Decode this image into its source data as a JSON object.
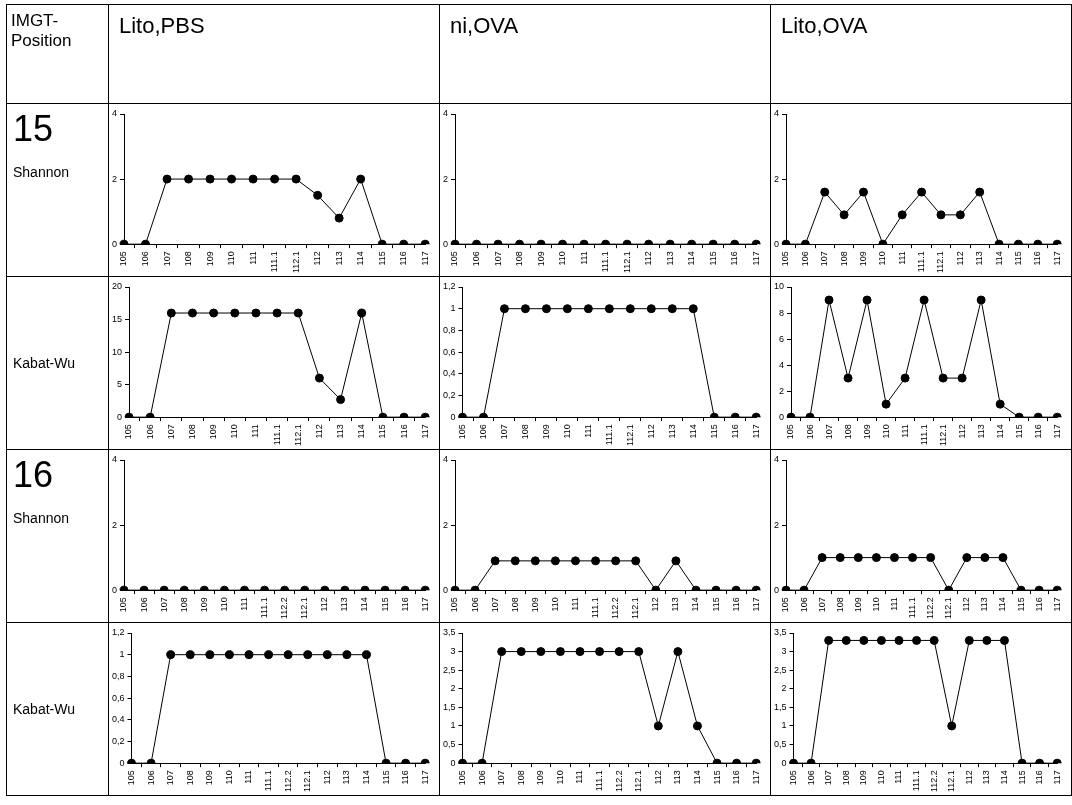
{
  "chart_data": [
    {
      "type": "other",
      "annotations": [
        "IMGT-Position",
        "Lito,PBS",
        "ni,OVA",
        "Lito,OVA",
        "15",
        "Shannon",
        "Kabat-Wu",
        "16",
        "Shannon",
        "Kabat-Wu"
      ]
    },
    {
      "type": "line",
      "marker": "circle",
      "line_style": "solid",
      "categories": [
        "105",
        "106",
        "107",
        "108",
        "109",
        "110",
        "111",
        "111.1",
        "112.1",
        "112",
        "113",
        "114",
        "115",
        "116",
        "117"
      ],
      "series": [
        {
          "color": "#000000",
          "values": [
            0,
            0,
            2,
            2,
            2,
            2,
            2,
            2,
            2,
            1.5,
            0.8,
            2,
            0,
            0,
            0
          ]
        }
      ],
      "ylim": [
        0,
        4
      ],
      "yticks": [
        0,
        2,
        4
      ]
    },
    {
      "type": "line",
      "marker": "circle",
      "line_style": "solid",
      "categories": [
        "105",
        "106",
        "107",
        "108",
        "109",
        "110",
        "111",
        "111.1",
        "112.1",
        "112",
        "113",
        "114",
        "115",
        "116",
        "117"
      ],
      "series": [
        {
          "color": "#000000",
          "values": [
            0,
            0,
            0,
            0,
            0,
            0,
            0,
            0,
            0,
            0,
            0,
            0,
            0,
            0,
            0
          ]
        }
      ],
      "ylim": [
        0,
        4
      ],
      "yticks": [
        0,
        2,
        4
      ]
    },
    {
      "type": "line",
      "marker": "circle",
      "line_style": "solid",
      "categories": [
        "105",
        "106",
        "107",
        "108",
        "109",
        "110",
        "111",
        "111.1",
        "112.1",
        "112",
        "113",
        "114",
        "115",
        "116",
        "117"
      ],
      "series": [
        {
          "color": "#000000",
          "values": [
            0,
            0,
            1.6,
            0.9,
            1.6,
            0,
            0.9,
            1.6,
            0.9,
            0.9,
            1.6,
            0,
            0,
            0,
            0
          ]
        }
      ],
      "ylim": [
        0,
        4
      ],
      "yticks": [
        0,
        2,
        4
      ]
    },
    {
      "type": "line",
      "marker": "circle",
      "line_style": "solid",
      "categories": [
        "105",
        "106",
        "107",
        "108",
        "109",
        "110",
        "111",
        "111.1",
        "112.1",
        "112",
        "113",
        "114",
        "115",
        "116",
        "117"
      ],
      "series": [
        {
          "color": "#000000",
          "values": [
            0,
            0,
            16,
            16,
            16,
            16,
            16,
            16,
            16,
            6,
            2.7,
            16,
            0,
            0,
            0
          ]
        }
      ],
      "ylim": [
        0,
        20
      ],
      "yticks": [
        0,
        5,
        10,
        15,
        20
      ]
    },
    {
      "type": "line",
      "marker": "circle",
      "line_style": "solid",
      "categories": [
        "105",
        "106",
        "107",
        "108",
        "109",
        "110",
        "111",
        "111.1",
        "112.1",
        "112",
        "113",
        "114",
        "115",
        "116",
        "117"
      ],
      "series": [
        {
          "color": "#000000",
          "values": [
            0,
            0,
            1,
            1,
            1,
            1,
            1,
            1,
            1,
            1,
            1,
            1,
            0,
            0,
            0
          ]
        }
      ],
      "ylim": [
        0,
        1.2
      ],
      "yticks": [
        0,
        {
          "value": 0.2,
          "label": "0,2"
        },
        {
          "value": 0.4,
          "label": "0,4"
        },
        {
          "value": 0.6,
          "label": "0,6"
        },
        {
          "value": 0.8,
          "label": "0,8"
        },
        1,
        {
          "value": 1.2,
          "label": "1,2"
        }
      ]
    },
    {
      "type": "line",
      "marker": "circle",
      "line_style": "solid",
      "categories": [
        "105",
        "106",
        "107",
        "108",
        "109",
        "110",
        "111",
        "111.1",
        "112.1",
        "112",
        "113",
        "114",
        "115",
        "116",
        "117"
      ],
      "series": [
        {
          "color": "#000000",
          "values": [
            0,
            0,
            9,
            3,
            9,
            1,
            3,
            9,
            3,
            3,
            9,
            1,
            0,
            0,
            0
          ]
        }
      ],
      "ylim": [
        0,
        10
      ],
      "yticks": [
        0,
        2,
        4,
        6,
        8,
        10
      ]
    },
    {
      "type": "line",
      "marker": "circle",
      "line_style": "solid",
      "categories": [
        "105",
        "106",
        "107",
        "108",
        "109",
        "110",
        "111",
        "111.1",
        "112.2",
        "112.1",
        "112",
        "113",
        "114",
        "115",
        "116",
        "117"
      ],
      "series": [
        {
          "color": "#000000",
          "values": [
            0,
            0,
            0,
            0,
            0,
            0,
            0,
            0,
            0,
            0,
            0,
            0,
            0,
            0,
            0,
            0
          ]
        }
      ],
      "ylim": [
        0,
        4
      ],
      "yticks": [
        0,
        2,
        4
      ]
    },
    {
      "type": "line",
      "marker": "circle",
      "line_style": "solid",
      "categories": [
        "105",
        "106",
        "107",
        "108",
        "109",
        "110",
        "111",
        "111.1",
        "112.2",
        "112.1",
        "112",
        "113",
        "114",
        "115",
        "116",
        "117"
      ],
      "series": [
        {
          "color": "#000000",
          "values": [
            0,
            0,
            0.9,
            0.9,
            0.9,
            0.9,
            0.9,
            0.9,
            0.9,
            0.9,
            0,
            0.9,
            0,
            0,
            0,
            0
          ]
        }
      ],
      "ylim": [
        0,
        4
      ],
      "yticks": [
        0,
        2,
        4
      ]
    },
    {
      "type": "line",
      "marker": "circle",
      "line_style": "solid",
      "categories": [
        "105",
        "106",
        "107",
        "108",
        "109",
        "110",
        "111",
        "111.1",
        "112.2",
        "112.1",
        "112",
        "113",
        "114",
        "115",
        "116",
        "117"
      ],
      "series": [
        {
          "color": "#000000",
          "values": [
            0,
            0,
            1,
            1,
            1,
            1,
            1,
            1,
            1,
            0,
            1,
            1,
            1,
            0,
            0,
            0
          ]
        }
      ],
      "ylim": [
        0,
        4
      ],
      "yticks": [
        0,
        2,
        4
      ]
    },
    {
      "type": "line",
      "marker": "circle",
      "line_style": "solid",
      "categories": [
        "105",
        "106",
        "107",
        "108",
        "109",
        "110",
        "111",
        "111.1",
        "112.2",
        "112.1",
        "112",
        "113",
        "114",
        "115",
        "116",
        "117"
      ],
      "series": [
        {
          "color": "#000000",
          "values": [
            0,
            0,
            1,
            1,
            1,
            1,
            1,
            1,
            1,
            1,
            1,
            1,
            1,
            0,
            0,
            0
          ]
        }
      ],
      "ylim": [
        0,
        1.2
      ],
      "yticks": [
        0,
        {
          "value": 0.2,
          "label": "0,2"
        },
        {
          "value": 0.4,
          "label": "0,4"
        },
        {
          "value": 0.6,
          "label": "0,6"
        },
        {
          "value": 0.8,
          "label": "0,8"
        },
        1,
        {
          "value": 1.2,
          "label": "1,2"
        }
      ]
    },
    {
      "type": "line",
      "marker": "circle",
      "line_style": "solid",
      "categories": [
        "105",
        "106",
        "107",
        "108",
        "109",
        "110",
        "111",
        "111.1",
        "112.2",
        "112.1",
        "112",
        "113",
        "114",
        "115",
        "116",
        "117"
      ],
      "series": [
        {
          "color": "#000000",
          "values": [
            0,
            0,
            3,
            3,
            3,
            3,
            3,
            3,
            3,
            3,
            1,
            3,
            1,
            0,
            0,
            0
          ]
        }
      ],
      "ylim": [
        0,
        3.5
      ],
      "yticks": [
        0,
        {
          "value": 0.5,
          "label": "0,5"
        },
        1,
        {
          "value": 1.5,
          "label": "1,5"
        },
        2,
        {
          "value": 2.5,
          "label": "2,5"
        },
        3,
        {
          "value": 3.5,
          "label": "3,5"
        }
      ]
    },
    {
      "type": "line",
      "marker": "circle",
      "line_style": "solid",
      "categories": [
        "105",
        "106",
        "107",
        "108",
        "109",
        "110",
        "111",
        "111.1",
        "112.2",
        "112.1",
        "112",
        "113",
        "114",
        "115",
        "116",
        "117"
      ],
      "series": [
        {
          "color": "#000000",
          "values": [
            0,
            0,
            3.3,
            3.3,
            3.3,
            3.3,
            3.3,
            3.3,
            3.3,
            1,
            3.3,
            3.3,
            3.3,
            0,
            0,
            0
          ]
        }
      ],
      "ylim": [
        0,
        3.5
      ],
      "yticks": [
        0,
        {
          "value": 0.5,
          "label": "0,5"
        },
        1,
        {
          "value": 1.5,
          "label": "1,5"
        },
        2,
        {
          "value": 2.5,
          "label": "2,5"
        },
        3,
        {
          "value": 3.5,
          "label": "3,5"
        }
      ]
    }
  ]
}
